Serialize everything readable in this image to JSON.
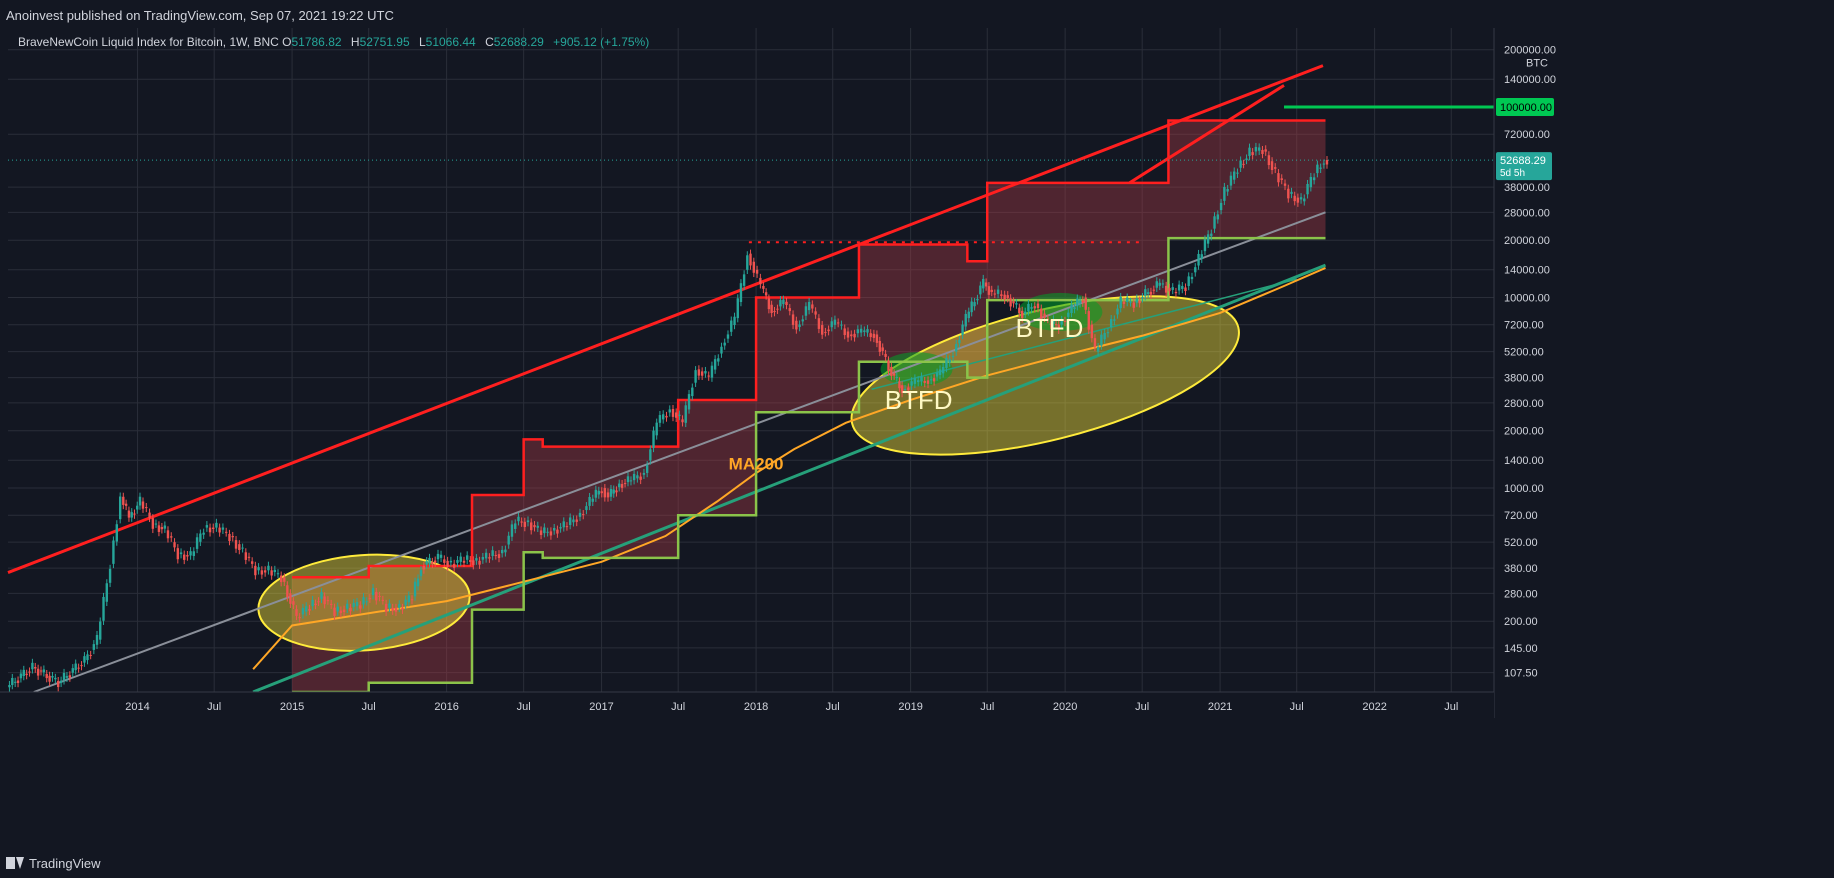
{
  "header": {
    "published": "Anoinvest published on TradingView.com, Sep 07, 2021 19:22 UTC"
  },
  "legend": {
    "symbol": "BraveNewCoin Liquid Index for Bitcoin, 1W, BNC",
    "o_label": "O",
    "o_value": "51786.82",
    "h_label": "H",
    "h_value": "52751.95",
    "l_label": "L",
    "l_value": "51066.44",
    "c_label": "C",
    "c_value": "52688.29",
    "change": "+905.12 (+1.75%)"
  },
  "footer": {
    "brand": "TradingView"
  },
  "colors": {
    "background": "#131722",
    "grid": "#2a2e39",
    "up": "#26a69a",
    "down": "#ef5350",
    "resistance": "#ff1f1f",
    "support_step": "#8bc34a",
    "ma200": "#ffa726",
    "trend_green": "#26a07a",
    "trend_gray": "#8a8f99",
    "ellipse": "#ffeb3b",
    "target": "#00c853"
  },
  "chart_data": {
    "type": "line",
    "title": "BraveNewCoin Liquid Index for Bitcoin, 1W, BNC",
    "y_scale": "log",
    "ylim": [
      85,
      260000
    ],
    "xlim": [
      "2013-03-01",
      "2022-10-10"
    ],
    "y_unit": "BTC",
    "y_ticks": [
      107.5,
      145,
      200,
      280,
      380,
      520,
      720,
      1000,
      1400,
      2000,
      2800,
      3800,
      5200,
      7200,
      10000,
      14000,
      20000,
      28000,
      38000,
      72000,
      140000,
      200000
    ],
    "y_tick_labels": [
      "107.50",
      "145.00",
      "200.00",
      "280.00",
      "380.00",
      "520.00",
      "720.00",
      "1000.00",
      "1400.00",
      "2000.00",
      "2800.00",
      "3800.00",
      "5200.00",
      "7200.00",
      "10000.00",
      "14000.00",
      "20000.00",
      "28000.00",
      "38000.00",
      "72000.00",
      "140000.00",
      "200000.00"
    ],
    "x_ticks": [
      {
        "label": "2014",
        "date": "2014-01-01"
      },
      {
        "label": "Jul",
        "date": "2014-07-01"
      },
      {
        "label": "2015",
        "date": "2015-01-01"
      },
      {
        "label": "Jul",
        "date": "2015-07-01"
      },
      {
        "label": "2016",
        "date": "2016-01-01"
      },
      {
        "label": "Jul",
        "date": "2016-07-01"
      },
      {
        "label": "2017",
        "date": "2017-01-01"
      },
      {
        "label": "Jul",
        "date": "2017-07-01"
      },
      {
        "label": "2018",
        "date": "2018-01-01"
      },
      {
        "label": "Jul",
        "date": "2018-07-01"
      },
      {
        "label": "2019",
        "date": "2019-01-01"
      },
      {
        "label": "Jul",
        "date": "2019-07-01"
      },
      {
        "label": "2020",
        "date": "2020-01-01"
      },
      {
        "label": "Jul",
        "date": "2020-07-01"
      },
      {
        "label": "2021",
        "date": "2021-01-01"
      },
      {
        "label": "Jul",
        "date": "2021-07-01"
      },
      {
        "label": "2022",
        "date": "2022-01-01"
      },
      {
        "label": "Jul",
        "date": "2022-07-01"
      }
    ],
    "price_series": {
      "name": "",
      "points": [
        [
          "2013-03-01",
          90
        ],
        [
          "2013-05-01",
          115
        ],
        [
          "2013-07-01",
          95
        ],
        [
          "2013-09-01",
          125
        ],
        [
          "2013-10-01",
          160
        ],
        [
          "2013-11-01",
          400
        ],
        [
          "2013-11-25",
          900
        ],
        [
          "2013-12-15",
          700
        ],
        [
          "2014-01-10",
          850
        ],
        [
          "2014-02-10",
          650
        ],
        [
          "2014-03-10",
          600
        ],
        [
          "2014-04-10",
          450
        ],
        [
          "2014-05-10",
          440
        ],
        [
          "2014-06-10",
          620
        ],
        [
          "2014-07-10",
          620
        ],
        [
          "2014-08-10",
          560
        ],
        [
          "2014-09-10",
          460
        ],
        [
          "2014-10-10",
          370
        ],
        [
          "2014-11-10",
          370
        ],
        [
          "2014-12-10",
          340
        ],
        [
          "2015-01-15",
          210
        ],
        [
          "2015-02-15",
          240
        ],
        [
          "2015-03-15",
          270
        ],
        [
          "2015-04-15",
          225
        ],
        [
          "2015-05-15",
          235
        ],
        [
          "2015-06-15",
          245
        ],
        [
          "2015-07-15",
          285
        ],
        [
          "2015-08-15",
          235
        ],
        [
          "2015-09-15",
          235
        ],
        [
          "2015-10-15",
          270
        ],
        [
          "2015-11-05",
          390
        ],
        [
          "2015-12-15",
          430
        ],
        [
          "2016-01-15",
          400
        ],
        [
          "2016-02-15",
          420
        ],
        [
          "2016-03-15",
          415
        ],
        [
          "2016-04-15",
          440
        ],
        [
          "2016-05-15",
          460
        ],
        [
          "2016-06-15",
          670
        ],
        [
          "2016-07-15",
          660
        ],
        [
          "2016-08-15",
          580
        ],
        [
          "2016-09-15",
          605
        ],
        [
          "2016-10-15",
          640
        ],
        [
          "2016-11-15",
          730
        ],
        [
          "2016-12-15",
          890
        ],
        [
          "2017-01-05",
          1000
        ],
        [
          "2017-01-20",
          900
        ],
        [
          "2017-02-15",
          1050
        ],
        [
          "2017-03-15",
          1100
        ],
        [
          "2017-04-15",
          1200
        ],
        [
          "2017-05-15",
          2200
        ],
        [
          "2017-06-15",
          2600
        ],
        [
          "2017-07-15",
          2200
        ],
        [
          "2017-08-15",
          4200
        ],
        [
          "2017-09-15",
          3800
        ],
        [
          "2017-10-15",
          5600
        ],
        [
          "2017-11-15",
          7800
        ],
        [
          "2017-12-15",
          17000
        ],
        [
          "2018-01-15",
          11500
        ],
        [
          "2018-02-10",
          8500
        ],
        [
          "2018-03-10",
          9500
        ],
        [
          "2018-04-10",
          7000
        ],
        [
          "2018-05-10",
          9200
        ],
        [
          "2018-06-10",
          6600
        ],
        [
          "2018-07-10",
          7400
        ],
        [
          "2018-08-10",
          6400
        ],
        [
          "2018-09-10",
          6600
        ],
        [
          "2018-10-10",
          6400
        ],
        [
          "2018-11-20",
          4000
        ],
        [
          "2018-12-15",
          3300
        ],
        [
          "2019-01-15",
          3600
        ],
        [
          "2019-02-15",
          3700
        ],
        [
          "2019-03-15",
          4000
        ],
        [
          "2019-04-15",
          5200
        ],
        [
          "2019-05-15",
          7800
        ],
        [
          "2019-06-25",
          12000
        ],
        [
          "2019-07-15",
          10500
        ],
        [
          "2019-08-15",
          10300
        ],
        [
          "2019-09-25",
          8200
        ],
        [
          "2019-10-25",
          9300
        ],
        [
          "2019-11-25",
          7300
        ],
        [
          "2019-12-20",
          7200
        ],
        [
          "2020-01-20",
          8700
        ],
        [
          "2020-02-15",
          10000
        ],
        [
          "2020-03-15",
          5200
        ],
        [
          "2020-04-15",
          7000
        ],
        [
          "2020-05-15",
          9500
        ],
        [
          "2020-06-15",
          9400
        ],
        [
          "2020-07-25",
          11000
        ],
        [
          "2020-08-15",
          11800
        ],
        [
          "2020-09-15",
          10700
        ],
        [
          "2020-10-15",
          11500
        ],
        [
          "2020-11-15",
          16000
        ],
        [
          "2020-12-15",
          23000
        ],
        [
          "2021-01-15",
          36000
        ],
        [
          "2021-02-15",
          48000
        ],
        [
          "2021-03-15",
          58000
        ],
        [
          "2021-04-15",
          60000
        ],
        [
          "2021-05-15",
          45000
        ],
        [
          "2021-06-15",
          35000
        ],
        [
          "2021-07-15",
          32000
        ],
        [
          "2021-08-15",
          45000
        ],
        [
          "2021-09-07",
          52688
        ]
      ]
    },
    "ma200": {
      "name": "MA200",
      "points": [
        [
          "2014-10-01",
          112
        ],
        [
          "2015-01-01",
          190
        ],
        [
          "2015-06-01",
          215
        ],
        [
          "2016-01-01",
          255
        ],
        [
          "2016-06-01",
          310
        ],
        [
          "2017-01-01",
          410
        ],
        [
          "2017-06-01",
          560
        ],
        [
          "2017-10-01",
          850
        ],
        [
          "2018-01-01",
          1200
        ],
        [
          "2018-04-01",
          1600
        ],
        [
          "2018-08-01",
          2200
        ],
        [
          "2019-01-01",
          2900
        ],
        [
          "2019-07-01",
          3900
        ],
        [
          "2020-01-01",
          5000
        ],
        [
          "2020-07-01",
          6300
        ],
        [
          "2021-01-01",
          8300
        ],
        [
          "2021-06-01",
          11500
        ],
        [
          "2021-09-07",
          14300
        ]
      ]
    },
    "resistance_step": {
      "points": [
        [
          "2015-01-01",
          340
        ],
        [
          "2015-07-01",
          340
        ],
        [
          "2015-07-01",
          390
        ],
        [
          "2016-03-01",
          390
        ],
        [
          "2016-03-01",
          920
        ],
        [
          "2016-07-01",
          920
        ],
        [
          "2016-07-01",
          1800
        ],
        [
          "2016-08-15",
          1800
        ],
        [
          "2016-08-15",
          1650
        ],
        [
          "2017-07-01",
          1650
        ],
        [
          "2017-07-01",
          2900
        ],
        [
          "2018-01-01",
          2900
        ],
        [
          "2018-01-01",
          10000
        ],
        [
          "2018-09-01",
          10000
        ],
        [
          "2018-09-01",
          19000
        ],
        [
          "2019-05-15",
          19000
        ],
        [
          "2019-05-15",
          15500
        ],
        [
          "2019-07-01",
          15500
        ],
        [
          "2019-07-01",
          40000
        ],
        [
          "2020-09-01",
          40000
        ],
        [
          "2020-09-01",
          85000
        ],
        [
          "2021-09-07",
          85000
        ]
      ]
    },
    "support_step": {
      "points": [
        [
          "2015-01-01",
          85
        ],
        [
          "2015-07-01",
          85
        ],
        [
          "2015-07-01",
          95
        ],
        [
          "2016-03-01",
          95
        ],
        [
          "2016-03-01",
          230
        ],
        [
          "2016-07-01",
          230
        ],
        [
          "2016-07-01",
          460
        ],
        [
          "2016-08-15",
          460
        ],
        [
          "2016-08-15",
          430
        ],
        [
          "2017-07-01",
          430
        ],
        [
          "2017-07-01",
          720
        ],
        [
          "2018-01-01",
          720
        ],
        [
          "2018-01-01",
          2500
        ],
        [
          "2018-09-01",
          2500
        ],
        [
          "2018-09-01",
          4600
        ],
        [
          "2019-05-15",
          4600
        ],
        [
          "2019-05-15",
          3800
        ],
        [
          "2019-07-01",
          3800
        ],
        [
          "2019-07-01",
          9700
        ],
        [
          "2020-09-01",
          9700
        ],
        [
          "2020-09-01",
          20500
        ],
        [
          "2021-09-07",
          20500
        ]
      ]
    },
    "dotted_ath": {
      "date_from": "2017-12-15",
      "date_to": "2020-07-01",
      "value": 19500
    },
    "resistance_trend": {
      "from": [
        "2013-03-01",
        360
      ],
      "to": [
        "2021-09-01",
        165000
      ]
    },
    "resistance_trend_2": {
      "from": [
        "2020-06-01",
        40000
      ],
      "to": [
        "2021-06-01",
        130000
      ]
    },
    "gray_trend": {
      "from": [
        "2013-05-01",
        85
      ],
      "to": [
        "2021-09-07",
        28000
      ]
    },
    "green_trend": {
      "from": [
        "2014-10-01",
        85
      ],
      "to": [
        "2021-09-07",
        14800
      ]
    },
    "green_trend_2": {
      "from": [
        "2018-10-01",
        3300
      ],
      "to": [
        "2021-07-01",
        12500
      ]
    },
    "target_line": {
      "from": "2021-06-01",
      "value": 100000
    },
    "ellipses": [
      {
        "center": [
          "2015-06-20",
          250
        ],
        "rx_days": 250,
        "ry_log": 0.25,
        "rotate": -4,
        "fill": true
      },
      {
        "center": [
          "2019-11-15",
          3900
        ],
        "rx_days": 470,
        "ry_log": 0.34,
        "rotate": -14,
        "fill": true
      }
    ],
    "green_zones": [
      {
        "center": [
          "2019-01-15",
          4200
        ],
        "rx_days": 85,
        "ry_log": 0.09
      },
      {
        "center": [
          "2019-12-20",
          8400
        ],
        "rx_days": 100,
        "ry_log": 0.1
      }
    ],
    "annotations": [
      {
        "text": "BTFD",
        "date": "2019-01-20",
        "value": 2600
      },
      {
        "text": "BTFD",
        "date": "2019-11-25",
        "value": 6200
      },
      {
        "text": "MA200",
        "date": "2018-01-01",
        "value": 1250
      }
    ],
    "price_label": {
      "value": 52688.29,
      "text": "52688.29",
      "countdown": "5d 5h"
    },
    "target_label": {
      "value": 100000,
      "text": "100000.00"
    }
  }
}
